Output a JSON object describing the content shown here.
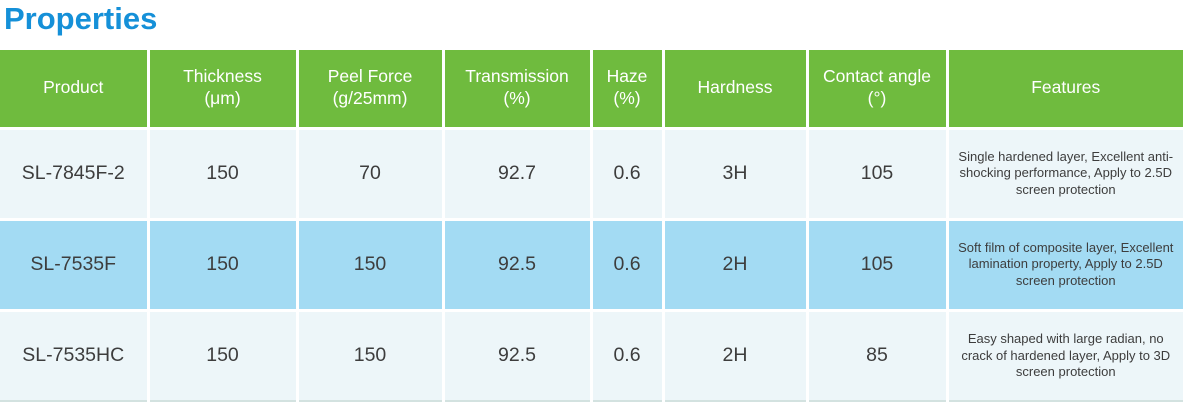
{
  "page": {
    "title": "Properties"
  },
  "colors": {
    "title_blue": "#1590d8",
    "header_green": "#6fbb3e",
    "row_light": "#edf6f9",
    "row_highlight_blue": "#a3dbf3",
    "cell_text": "#3d3d3d",
    "header_text": "#ffffff"
  },
  "table": {
    "headers": [
      "Product",
      "Thickness\n(μm)",
      "Peel Force\n(g/25mm)",
      "Transmission\n(%)",
      "Haze\n(%)",
      "Hardness",
      "Contact angle\n(°)",
      "Features"
    ],
    "rows": [
      [
        "SL-7845F-2",
        "150",
        "70",
        "92.7",
        "0.6",
        "3H",
        "105",
        "Single hardened layer, Excellent anti-shocking performance, Apply to 2.5D screen protection"
      ],
      [
        "SL-7535F",
        "150",
        "150",
        "92.5",
        "0.6",
        "2H",
        "105",
        "Soft film of composite layer, Excellent lamination property, Apply to 2.5D screen protection"
      ],
      [
        "SL-7535HC",
        "150",
        "150",
        "92.5",
        "0.6",
        "2H",
        "85",
        "Easy shaped with large radian, no crack of hardened layer, Apply to 3D screen protection"
      ]
    ]
  }
}
